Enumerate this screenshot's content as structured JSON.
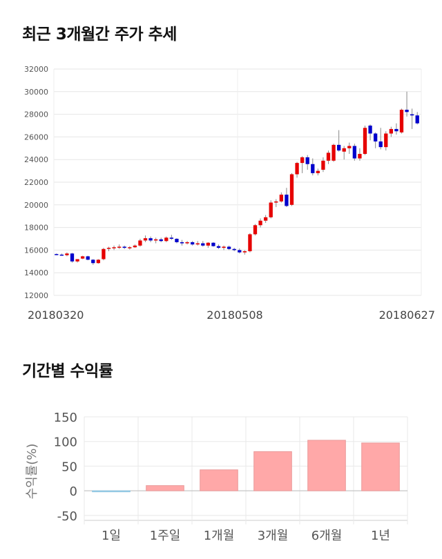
{
  "titles": {
    "price_trend": "최근 3개월간 주가 추세",
    "period_returns": "기간별 수익률"
  },
  "chart_data": [
    {
      "type": "candlestick",
      "title": "최근 3개월간 주가 추세",
      "ylim": [
        12000,
        32000
      ],
      "yticks": [
        12000,
        14000,
        16000,
        18000,
        20000,
        22000,
        24000,
        26000,
        28000,
        30000,
        32000
      ],
      "xtick_labels": [
        "20180320",
        "20180508",
        "20180627"
      ],
      "grid": true,
      "colors": {
        "up": "#e60000",
        "down": "#0000cc",
        "wick": "#888888"
      },
      "candles": [
        [
          15650,
          15700,
          15550,
          15600
        ],
        [
          15600,
          15700,
          15500,
          15550
        ],
        [
          15550,
          15800,
          15450,
          15700
        ],
        [
          15700,
          15750,
          14900,
          15000
        ],
        [
          15000,
          15200,
          14900,
          15200
        ],
        [
          15250,
          15500,
          15200,
          15450
        ],
        [
          15450,
          15500,
          15100,
          15150
        ],
        [
          15150,
          15200,
          14700,
          14850
        ],
        [
          14850,
          15200,
          14800,
          15150
        ],
        [
          15200,
          16200,
          15100,
          16100
        ],
        [
          16150,
          16300,
          15900,
          16200
        ],
        [
          16200,
          16400,
          16000,
          16250
        ],
        [
          16250,
          16500,
          16100,
          16300
        ],
        [
          16300,
          16400,
          16100,
          16200
        ],
        [
          16200,
          16350,
          16050,
          16250
        ],
        [
          16250,
          16500,
          16200,
          16400
        ],
        [
          16400,
          17000,
          16300,
          16850
        ],
        [
          16850,
          17300,
          16700,
          17050
        ],
        [
          17050,
          17200,
          16700,
          16850
        ],
        [
          16850,
          17100,
          16600,
          16950
        ],
        [
          16950,
          17100,
          16700,
          16800
        ],
        [
          16800,
          17200,
          16700,
          17100
        ],
        [
          17100,
          17350,
          16900,
          17000
        ],
        [
          17000,
          17050,
          16600,
          16700
        ],
        [
          16700,
          16900,
          16400,
          16600
        ],
        [
          16600,
          16800,
          16500,
          16700
        ],
        [
          16700,
          16800,
          16400,
          16500
        ],
        [
          16500,
          16800,
          16400,
          16600
        ],
        [
          16600,
          16800,
          16300,
          16400
        ],
        [
          16400,
          16700,
          16200,
          16650
        ],
        [
          16650,
          16700,
          16300,
          16350
        ],
        [
          16350,
          16500,
          16100,
          16200
        ],
        [
          16200,
          16400,
          16000,
          16300
        ],
        [
          16300,
          16400,
          16000,
          16100
        ],
        [
          16100,
          16200,
          15900,
          16000
        ],
        [
          16000,
          16150,
          15700,
          15800
        ],
        [
          15800,
          16000,
          15600,
          15900
        ],
        [
          15900,
          17500,
          15800,
          17400
        ],
        [
          17400,
          18300,
          17300,
          18200
        ],
        [
          18200,
          18800,
          18000,
          18600
        ],
        [
          18600,
          19100,
          18400,
          18900
        ],
        [
          18900,
          20400,
          18800,
          20200
        ],
        [
          20200,
          20500,
          19800,
          20300
        ],
        [
          20300,
          21100,
          20200,
          20900
        ],
        [
          20900,
          21500,
          19800,
          19900
        ],
        [
          20000,
          22800,
          19900,
          22700
        ],
        [
          22700,
          23800,
          22400,
          23700
        ],
        [
          23700,
          24300,
          22800,
          24200
        ],
        [
          24200,
          24400,
          23100,
          23600
        ],
        [
          23600,
          24100,
          22600,
          22800
        ],
        [
          22800,
          23200,
          22600,
          23000
        ],
        [
          23100,
          24200,
          22900,
          23900
        ],
        [
          23900,
          24800,
          23600,
          24600
        ],
        [
          23900,
          25400,
          23800,
          25300
        ],
        [
          25300,
          26600,
          24700,
          24800
        ],
        [
          24700,
          25200,
          24000,
          25000
        ],
        [
          25000,
          25500,
          24500,
          25200
        ],
        [
          25200,
          25400,
          23900,
          24100
        ],
        [
          24100,
          25000,
          23900,
          24500
        ],
        [
          24500,
          27000,
          24400,
          26800
        ],
        [
          27000,
          27100,
          25700,
          26300
        ],
        [
          26300,
          26400,
          25000,
          25600
        ],
        [
          25600,
          26800,
          24900,
          25100
        ],
        [
          25100,
          26500,
          24800,
          26300
        ],
        [
          26300,
          26900,
          26000,
          26700
        ],
        [
          26700,
          27200,
          26200,
          26500
        ],
        [
          26400,
          28500,
          26300,
          28400
        ],
        [
          28400,
          30000,
          27800,
          28200
        ],
        [
          28000,
          28500,
          26700,
          27900
        ],
        [
          27900,
          28200,
          27100,
          27200
        ]
      ]
    },
    {
      "type": "bar",
      "title": "기간별 수익률",
      "ylabel": "수익률(%)",
      "ylim": [
        -60,
        150
      ],
      "yticks": [
        -50,
        0,
        50,
        100,
        150
      ],
      "categories": [
        "1일",
        "1주일",
        "1개월",
        "3개월",
        "6개월",
        "1년"
      ],
      "values": [
        -1.4,
        10.5,
        42.5,
        79.5,
        102.5,
        97.0
      ],
      "grid": true,
      "colors": {
        "positive": "#ffa8a8",
        "negative": "#a8d8f0",
        "positive_edge": "#e99a9a",
        "negative_edge": "#8cc4e0"
      }
    }
  ]
}
